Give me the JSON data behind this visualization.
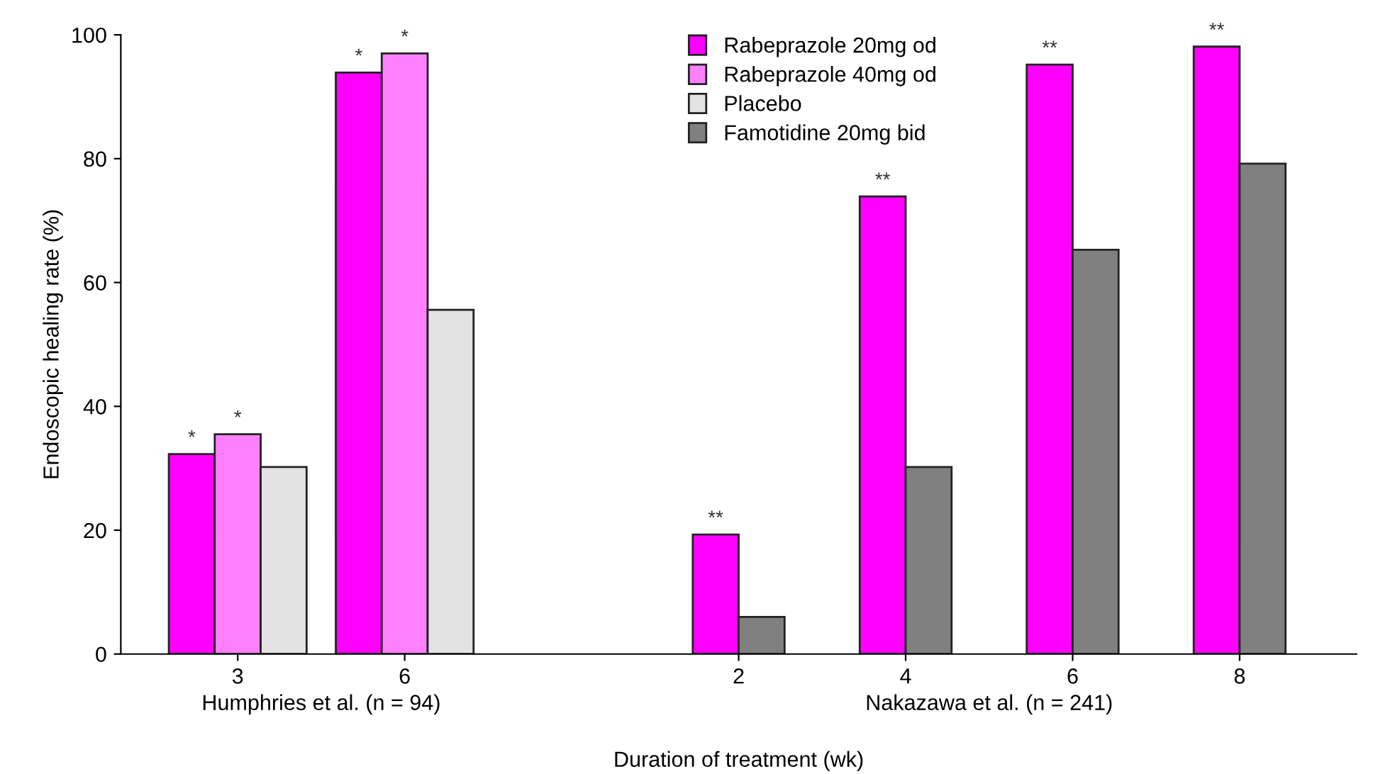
{
  "chart_data": {
    "type": "bar",
    "xlabel": "Duration of treatment (wk)",
    "ylabel": "Endoscopic healing rate (%)",
    "categories": [
      "3",
      "6",
      null,
      "2",
      "4",
      "6",
      "8"
    ],
    "series": [
      {
        "name": "Rabeprazole 20mg od",
        "color": "#ff00ff",
        "values": [
          32.3,
          93.9,
          null,
          19.3,
          73.9,
          95.2,
          98.1
        ],
        "value_labels": [
          "*",
          "*",
          null,
          "**",
          "**",
          "**",
          "**"
        ]
      },
      {
        "name": "Rabeprazole 40mg od",
        "color": "#ff80ff",
        "values": [
          35.5,
          97.0,
          null,
          null,
          null,
          null,
          null
        ],
        "value_labels": [
          "*",
          "*",
          null,
          null,
          null,
          null,
          null
        ]
      },
      {
        "name": "Placebo",
        "color": "#e3e3e3",
        "values": [
          30.2,
          55.6,
          null,
          null,
          null,
          null,
          null
        ]
      },
      {
        "name": "Famotidine 20mg bid",
        "color": "#808080",
        "values": [
          null,
          null,
          null,
          6.0,
          30.2,
          65.3,
          79.2
        ]
      }
    ],
    "annotations": [
      "Humphries et al. (n = 94)",
      "Nakazawa et al. (n = 241)"
    ],
    "ylim": [
      0,
      100
    ],
    "yticks": [
      0,
      20,
      40,
      60,
      80,
      100
    ],
    "grid": false,
    "legend": "top"
  }
}
